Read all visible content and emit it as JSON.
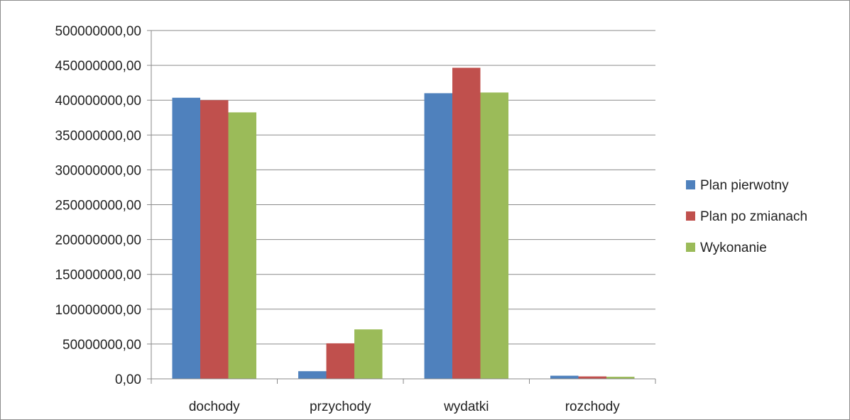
{
  "chart_data": {
    "type": "bar",
    "categories": [
      "dochody",
      "przychody",
      "wydatki",
      "rozchody"
    ],
    "series": [
      {
        "name": "Plan pierwotny",
        "color": "#4f81bd",
        "values": [
          403500000,
          11000000,
          410000000,
          4500000
        ]
      },
      {
        "name": "Plan po zmianach",
        "color": "#c0504d",
        "values": [
          400000000,
          51000000,
          446500000,
          3500000
        ]
      },
      {
        "name": "Wykonanie",
        "color": "#9bbb59",
        "values": [
          382500000,
          71000000,
          411000000,
          3000000
        ]
      }
    ],
    "yticks": [
      "0,00",
      "50000000,00",
      "100000000,00",
      "150000000,00",
      "200000000,00",
      "250000000,00",
      "300000000,00",
      "350000000,00",
      "400000000,00",
      "450000000,00",
      "500000000,00"
    ],
    "ylim": [
      0,
      500000000
    ],
    "grid": true,
    "legend_position": "right"
  }
}
